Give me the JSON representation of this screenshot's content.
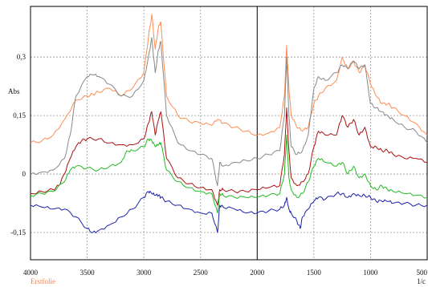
{
  "chart_data": {
    "type": "line",
    "title": "",
    "xlabel": "1/c",
    "ylabel": "Abs",
    "xlim": [
      4000,
      500
    ],
    "ylim": [
      -0.22,
      0.43
    ],
    "x_reversed": true,
    "grid": true,
    "grid_style": "dotted",
    "vertical_marker_x": 2000,
    "xticks": [
      {
        "value": 4000,
        "label": "4000"
      },
      {
        "value": 3500,
        "label": "3500"
      },
      {
        "value": 3000,
        "label": "3000"
      },
      {
        "value": 2500,
        "label": "2500"
      },
      {
        "value": 2000,
        "label": "2000"
      },
      {
        "value": 1500,
        "label": "1500"
      },
      {
        "value": 1000,
        "label": "1000"
      },
      {
        "value": 500,
        "label": "500"
      }
    ],
    "yticks": [
      {
        "value": 0.3,
        "label": "0,3"
      },
      {
        "value": 0.15,
        "label": "0,15"
      },
      {
        "value": 0,
        "label": "0"
      },
      {
        "value": -0.15,
        "label": "-0,15"
      }
    ],
    "legend_note": "Erstfolie",
    "legend_note_color": "#ff7f40",
    "series": [
      {
        "color": "#ff8c50",
        "points": [
          [
            4000,
            0.08
          ],
          [
            3900,
            0.085
          ],
          [
            3800,
            0.1
          ],
          [
            3700,
            0.14
          ],
          [
            3600,
            0.19
          ],
          [
            3500,
            0.2
          ],
          [
            3450,
            0.205
          ],
          [
            3400,
            0.21
          ],
          [
            3300,
            0.22
          ],
          [
            3200,
            0.2
          ],
          [
            3100,
            0.22
          ],
          [
            3000,
            0.26
          ],
          [
            2960,
            0.35
          ],
          [
            2930,
            0.41
          ],
          [
            2900,
            0.32
          ],
          [
            2870,
            0.38
          ],
          [
            2850,
            0.39
          ],
          [
            2800,
            0.2
          ],
          [
            2700,
            0.15
          ],
          [
            2600,
            0.135
          ],
          [
            2500,
            0.13
          ],
          [
            2400,
            0.125
          ],
          [
            2350,
            0.14
          ],
          [
            2300,
            0.13
          ],
          [
            2200,
            0.12
          ],
          [
            2100,
            0.11
          ],
          [
            2000,
            0.1
          ],
          [
            1900,
            0.105
          ],
          [
            1800,
            0.12
          ],
          [
            1760,
            0.2
          ],
          [
            1740,
            0.33
          ],
          [
            1720,
            0.22
          ],
          [
            1700,
            0.15
          ],
          [
            1650,
            0.12
          ],
          [
            1600,
            0.11
          ],
          [
            1550,
            0.12
          ],
          [
            1500,
            0.18
          ],
          [
            1460,
            0.2
          ],
          [
            1400,
            0.22
          ],
          [
            1300,
            0.24
          ],
          [
            1250,
            0.3
          ],
          [
            1200,
            0.27
          ],
          [
            1150,
            0.29
          ],
          [
            1100,
            0.26
          ],
          [
            1050,
            0.28
          ],
          [
            1000,
            0.23
          ],
          [
            950,
            0.2
          ],
          [
            900,
            0.18
          ],
          [
            850,
            0.18
          ],
          [
            800,
            0.17
          ],
          [
            700,
            0.15
          ],
          [
            600,
            0.13
          ],
          [
            500,
            0.1
          ]
        ]
      },
      {
        "color": "#888888",
        "points": [
          [
            4000,
            0.0
          ],
          [
            3900,
            0.005
          ],
          [
            3800,
            0.01
          ],
          [
            3700,
            0.04
          ],
          [
            3650,
            0.1
          ],
          [
            3600,
            0.2
          ],
          [
            3500,
            0.25
          ],
          [
            3450,
            0.255
          ],
          [
            3400,
            0.25
          ],
          [
            3300,
            0.23
          ],
          [
            3200,
            0.2
          ],
          [
            3100,
            0.2
          ],
          [
            3000,
            0.24
          ],
          [
            2960,
            0.3
          ],
          [
            2930,
            0.35
          ],
          [
            2900,
            0.26
          ],
          [
            2870,
            0.32
          ],
          [
            2850,
            0.34
          ],
          [
            2800,
            0.15
          ],
          [
            2700,
            0.08
          ],
          [
            2600,
            0.06
          ],
          [
            2500,
            0.05
          ],
          [
            2400,
            0.04
          ],
          [
            2350,
            -0.03
          ],
          [
            2330,
            0.03
          ],
          [
            2300,
            0.02
          ],
          [
            2200,
            0.03
          ],
          [
            2100,
            0.035
          ],
          [
            2000,
            0.04
          ],
          [
            1900,
            0.05
          ],
          [
            1800,
            0.06
          ],
          [
            1760,
            0.15
          ],
          [
            1740,
            0.3
          ],
          [
            1720,
            0.15
          ],
          [
            1700,
            0.07
          ],
          [
            1650,
            0.05
          ],
          [
            1600,
            0.06
          ],
          [
            1550,
            0.1
          ],
          [
            1500,
            0.22
          ],
          [
            1460,
            0.25
          ],
          [
            1400,
            0.24
          ],
          [
            1300,
            0.26
          ],
          [
            1250,
            0.28
          ],
          [
            1200,
            0.27
          ],
          [
            1150,
            0.29
          ],
          [
            1100,
            0.27
          ],
          [
            1050,
            0.28
          ],
          [
            1000,
            0.18
          ],
          [
            950,
            0.17
          ],
          [
            900,
            0.16
          ],
          [
            850,
            0.15
          ],
          [
            800,
            0.14
          ],
          [
            700,
            0.12
          ],
          [
            600,
            0.11
          ],
          [
            500,
            0.08
          ]
        ]
      },
      {
        "color": "#aa1111",
        "points": [
          [
            4000,
            -0.05
          ],
          [
            3900,
            -0.045
          ],
          [
            3800,
            -0.04
          ],
          [
            3750,
            -0.03
          ],
          [
            3700,
            0.0
          ],
          [
            3650,
            0.04
          ],
          [
            3600,
            0.07
          ],
          [
            3550,
            0.085
          ],
          [
            3500,
            0.09
          ],
          [
            3400,
            0.09
          ],
          [
            3300,
            0.08
          ],
          [
            3200,
            0.075
          ],
          [
            3100,
            0.075
          ],
          [
            3000,
            0.09
          ],
          [
            2960,
            0.13
          ],
          [
            2930,
            0.16
          ],
          [
            2900,
            0.1
          ],
          [
            2870,
            0.14
          ],
          [
            2850,
            0.16
          ],
          [
            2800,
            0.04
          ],
          [
            2700,
            -0.01
          ],
          [
            2600,
            -0.025
          ],
          [
            2500,
            -0.035
          ],
          [
            2400,
            -0.04
          ],
          [
            2350,
            -0.08
          ],
          [
            2330,
            -0.04
          ],
          [
            2300,
            -0.04
          ],
          [
            2200,
            -0.045
          ],
          [
            2100,
            -0.045
          ],
          [
            2000,
            -0.04
          ],
          [
            1900,
            -0.035
          ],
          [
            1800,
            -0.03
          ],
          [
            1760,
            0.05
          ],
          [
            1740,
            0.17
          ],
          [
            1720,
            0.06
          ],
          [
            1700,
            -0.01
          ],
          [
            1650,
            -0.03
          ],
          [
            1600,
            -0.02
          ],
          [
            1550,
            0.0
          ],
          [
            1500,
            0.07
          ],
          [
            1460,
            0.11
          ],
          [
            1400,
            0.1
          ],
          [
            1300,
            0.1
          ],
          [
            1250,
            0.15
          ],
          [
            1200,
            0.12
          ],
          [
            1150,
            0.14
          ],
          [
            1100,
            0.1
          ],
          [
            1050,
            0.12
          ],
          [
            1000,
            0.07
          ],
          [
            950,
            0.07
          ],
          [
            900,
            0.06
          ],
          [
            850,
            0.06
          ],
          [
            800,
            0.05
          ],
          [
            700,
            0.04
          ],
          [
            600,
            0.04
          ],
          [
            500,
            0.03
          ]
        ]
      },
      {
        "color": "#22bb22",
        "points": [
          [
            4000,
            -0.055
          ],
          [
            3900,
            -0.05
          ],
          [
            3800,
            -0.045
          ],
          [
            3700,
            -0.02
          ],
          [
            3650,
            0.01
          ],
          [
            3600,
            0.02
          ],
          [
            3500,
            0.015
          ],
          [
            3400,
            0.01
          ],
          [
            3300,
            0.02
          ],
          [
            3200,
            0.03
          ],
          [
            3150,
            0.06
          ],
          [
            3100,
            0.06
          ],
          [
            3000,
            0.07
          ],
          [
            2960,
            0.09
          ],
          [
            2930,
            0.085
          ],
          [
            2900,
            0.07
          ],
          [
            2870,
            0.075
          ],
          [
            2850,
            0.08
          ],
          [
            2800,
            0.01
          ],
          [
            2700,
            -0.02
          ],
          [
            2600,
            -0.035
          ],
          [
            2500,
            -0.045
          ],
          [
            2400,
            -0.05
          ],
          [
            2350,
            -0.1
          ],
          [
            2330,
            -0.05
          ],
          [
            2300,
            -0.055
          ],
          [
            2200,
            -0.06
          ],
          [
            2100,
            -0.06
          ],
          [
            2000,
            -0.06
          ],
          [
            1900,
            -0.055
          ],
          [
            1800,
            -0.05
          ],
          [
            1760,
            0.0
          ],
          [
            1740,
            0.1
          ],
          [
            1720,
            -0.01
          ],
          [
            1700,
            -0.04
          ],
          [
            1650,
            -0.06
          ],
          [
            1600,
            -0.05
          ],
          [
            1550,
            -0.02
          ],
          [
            1500,
            0.02
          ],
          [
            1460,
            0.04
          ],
          [
            1400,
            0.03
          ],
          [
            1300,
            0.02
          ],
          [
            1250,
            0.03
          ],
          [
            1200,
            0.0
          ],
          [
            1150,
            0.02
          ],
          [
            1100,
            -0.01
          ],
          [
            1050,
            0.0
          ],
          [
            1000,
            -0.03
          ],
          [
            950,
            -0.04
          ],
          [
            900,
            -0.03
          ],
          [
            850,
            -0.04
          ],
          [
            800,
            -0.045
          ],
          [
            700,
            -0.05
          ],
          [
            600,
            -0.055
          ],
          [
            500,
            -0.06
          ]
        ]
      },
      {
        "color": "#1a22aa",
        "points": [
          [
            4000,
            -0.08
          ],
          [
            3900,
            -0.085
          ],
          [
            3800,
            -0.09
          ],
          [
            3700,
            -0.09
          ],
          [
            3600,
            -0.11
          ],
          [
            3500,
            -0.14
          ],
          [
            3450,
            -0.15
          ],
          [
            3400,
            -0.145
          ],
          [
            3300,
            -0.13
          ],
          [
            3200,
            -0.11
          ],
          [
            3100,
            -0.09
          ],
          [
            3000,
            -0.06
          ],
          [
            2960,
            -0.045
          ],
          [
            2930,
            -0.05
          ],
          [
            2900,
            -0.055
          ],
          [
            2870,
            -0.055
          ],
          [
            2850,
            -0.06
          ],
          [
            2800,
            -0.07
          ],
          [
            2700,
            -0.08
          ],
          [
            2600,
            -0.09
          ],
          [
            2500,
            -0.1
          ],
          [
            2400,
            -0.1
          ],
          [
            2350,
            -0.15
          ],
          [
            2330,
            -0.08
          ],
          [
            2300,
            -0.085
          ],
          [
            2200,
            -0.09
          ],
          [
            2100,
            -0.1
          ],
          [
            2000,
            -0.1
          ],
          [
            1900,
            -0.095
          ],
          [
            1800,
            -0.09
          ],
          [
            1760,
            -0.08
          ],
          [
            1740,
            -0.06
          ],
          [
            1720,
            -0.09
          ],
          [
            1700,
            -0.1
          ],
          [
            1650,
            -0.12
          ],
          [
            1620,
            -0.14
          ],
          [
            1600,
            -0.11
          ],
          [
            1550,
            -0.09
          ],
          [
            1500,
            -0.07
          ],
          [
            1460,
            -0.06
          ],
          [
            1400,
            -0.065
          ],
          [
            1300,
            -0.05
          ],
          [
            1250,
            -0.05
          ],
          [
            1200,
            -0.06
          ],
          [
            1150,
            -0.05
          ],
          [
            1100,
            -0.055
          ],
          [
            1050,
            -0.055
          ],
          [
            1000,
            -0.06
          ],
          [
            950,
            -0.07
          ],
          [
            900,
            -0.07
          ],
          [
            850,
            -0.07
          ],
          [
            800,
            -0.075
          ],
          [
            700,
            -0.075
          ],
          [
            600,
            -0.08
          ],
          [
            500,
            -0.08
          ]
        ]
      }
    ]
  }
}
